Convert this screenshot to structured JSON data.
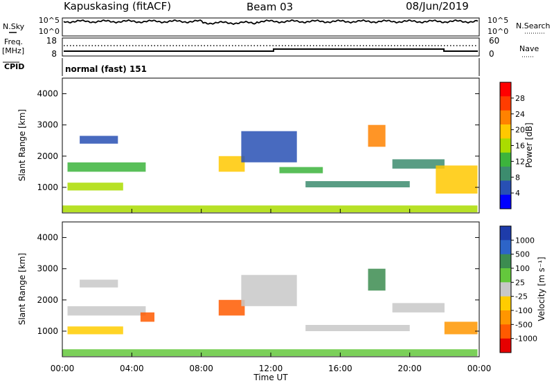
{
  "header": {
    "radar": "Kapuskasing (fitACF)",
    "beam": "Beam 03",
    "date": "08/Jun/2019"
  },
  "status": {
    "nsky_label": "N.Sky",
    "nsky_ticks": [
      "10^5",
      "10^0"
    ],
    "nsearch_label": "N.Search",
    "nsearch_ticks": [
      "10^5",
      "10^0"
    ],
    "freq_label_1": "Freq.",
    "freq_label_2": "[MHz]",
    "freq_ticks": [
      "18",
      "8"
    ],
    "nave_label": "Nave",
    "nave_ticks": [
      "60",
      "0"
    ],
    "cpid_label": "CPID",
    "cpid_text": "normal (fast) 151"
  },
  "chart_data": [
    {
      "type": "heatmap",
      "title": "Power",
      "ylabel": "Slant Range [km]",
      "xlabel": "",
      "ylim": [
        180,
        4500
      ],
      "yticks": [
        1000,
        2000,
        3000,
        4000
      ],
      "xticks": [
        "00:00",
        "04:00",
        "08:00",
        "12:00",
        "16:00",
        "20:00",
        "00:00"
      ],
      "colorbar": {
        "label": "Power [dB]",
        "ticks": [
          "28",
          "24",
          "20",
          "16",
          "12",
          "8",
          "4"
        ],
        "colors": [
          "#ff0000",
          "#ff3c00",
          "#ff8200",
          "#ffc800",
          "#aadc00",
          "#3cb43c",
          "#3c8c6e",
          "#2850b4",
          "#0000ff"
        ]
      },
      "echo_bands": [
        {
          "t0": 0.3,
          "t1": 4.8,
          "r0": 1500,
          "r1": 1800,
          "color_index": 5
        },
        {
          "t0": 0.3,
          "t1": 3.5,
          "r0": 900,
          "r1": 1150,
          "color_index": 4
        },
        {
          "t0": 1.0,
          "t1": 3.2,
          "r0": 2400,
          "r1": 2650,
          "color_index": 7
        },
        {
          "t0": 9.0,
          "t1": 10.5,
          "r0": 1500,
          "r1": 2000,
          "color_index": 3
        },
        {
          "t0": 10.3,
          "t1": 13.5,
          "r0": 1800,
          "r1": 2800,
          "color_index": 7
        },
        {
          "t0": 12.5,
          "t1": 15.0,
          "r0": 1450,
          "r1": 1650,
          "color_index": 5
        },
        {
          "t0": 14.0,
          "t1": 20.0,
          "r0": 1000,
          "r1": 1200,
          "color_index": 6
        },
        {
          "t0": 17.6,
          "t1": 18.6,
          "r0": 2300,
          "r1": 3000,
          "color_index": 2
        },
        {
          "t0": 19.0,
          "t1": 22.0,
          "r0": 1600,
          "r1": 1900,
          "color_index": 6
        },
        {
          "t0": 21.5,
          "t1": 23.9,
          "r0": 800,
          "r1": 1700,
          "color_index": 3
        },
        {
          "t0": 0.0,
          "t1": 23.9,
          "r0": 200,
          "r1": 420,
          "color_index": 4
        }
      ]
    },
    {
      "type": "heatmap",
      "title": "Velocity",
      "ylabel": "Slant Range [km]",
      "xlabel": "Time UT",
      "ylim": [
        180,
        4500
      ],
      "yticks": [
        1000,
        2000,
        3000,
        4000
      ],
      "xticks": [
        "00:00",
        "04:00",
        "08:00",
        "12:00",
        "16:00",
        "20:00",
        "00:00"
      ],
      "colorbar": {
        "label": "Velocity [m s⁻¹]",
        "ticks": [
          "1000",
          "500",
          "100",
          "25",
          "-25",
          "-100",
          "-500",
          "-1000"
        ],
        "colors": [
          "#1e3caa",
          "#2d64c8",
          "#3c8c50",
          "#64c83c",
          "#c8c8c8",
          "#ffcc00",
          "#ff9600",
          "#ff5a00",
          "#e60000"
        ]
      },
      "echo_bands": [
        {
          "t0": 0.3,
          "t1": 4.8,
          "r0": 1500,
          "r1": 1800,
          "color_index": 4
        },
        {
          "t0": 0.3,
          "t1": 3.5,
          "r0": 900,
          "r1": 1150,
          "color_index": 5
        },
        {
          "t0": 1.0,
          "t1": 3.2,
          "r0": 2400,
          "r1": 2650,
          "color_index": 4
        },
        {
          "t0": 4.5,
          "t1": 5.3,
          "r0": 1300,
          "r1": 1600,
          "color_index": 7
        },
        {
          "t0": 9.0,
          "t1": 10.5,
          "r0": 1500,
          "r1": 2000,
          "color_index": 7
        },
        {
          "t0": 10.3,
          "t1": 13.5,
          "r0": 1800,
          "r1": 2800,
          "color_index": 4
        },
        {
          "t0": 14.0,
          "t1": 20.0,
          "r0": 1000,
          "r1": 1200,
          "color_index": 4
        },
        {
          "t0": 17.6,
          "t1": 18.6,
          "r0": 2300,
          "r1": 3000,
          "color_index": 2
        },
        {
          "t0": 19.0,
          "t1": 22.0,
          "r0": 1600,
          "r1": 1900,
          "color_index": 4
        },
        {
          "t0": 22.0,
          "t1": 23.9,
          "r0": 900,
          "r1": 1300,
          "color_index": 6
        },
        {
          "t0": 0.0,
          "t1": 23.9,
          "r0": 200,
          "r1": 420,
          "color_index": 3
        }
      ]
    }
  ]
}
